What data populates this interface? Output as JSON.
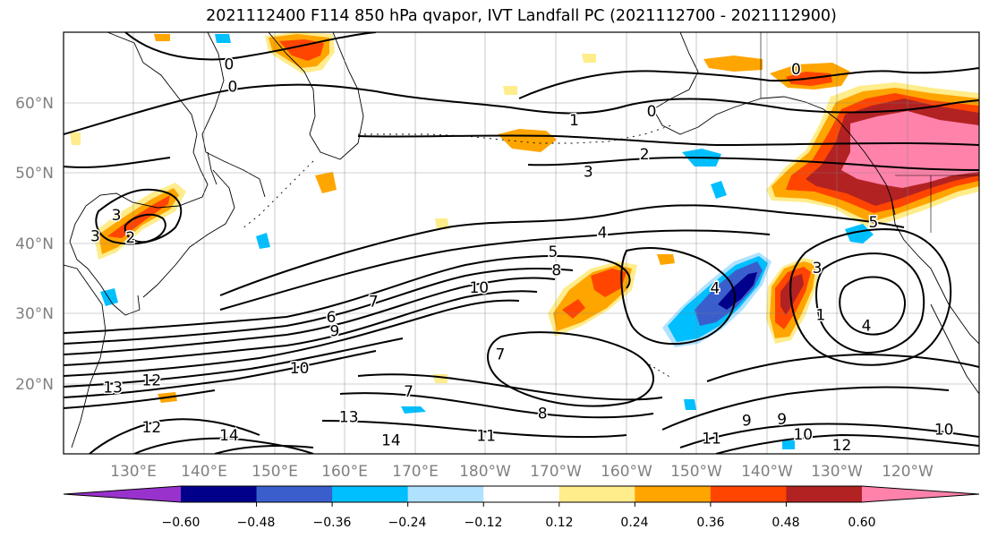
{
  "title": "2021112400 F114 850 hPa qvapor, IVT Landfall PC (2021112700 - 2021112900)",
  "map": {
    "lat_labels": [
      "60°N",
      "50°N",
      "40°N",
      "30°N",
      "20°N"
    ],
    "lon_labels": [
      "130°E",
      "140°E",
      "150°E",
      "160°E",
      "170°E",
      "180°W",
      "170°W",
      "160°W",
      "150°W",
      "140°W",
      "130°W",
      "120°W"
    ],
    "contour_labels": [
      {
        "text": "0",
        "lon": 143.5,
        "lat": 65.5
      },
      {
        "text": "0",
        "lon": 144.0,
        "lat": 62.3
      },
      {
        "text": "0",
        "lon": 224.0,
        "lat": 64.8
      },
      {
        "text": "0",
        "lon": 203.5,
        "lat": 58.8
      },
      {
        "text": "1",
        "lon": 192.5,
        "lat": 57.5
      },
      {
        "text": "2",
        "lon": 202.5,
        "lat": 52.7
      },
      {
        "text": "3",
        "lon": 194.5,
        "lat": 50.2
      },
      {
        "text": "3",
        "lon": 127.5,
        "lat": 44.0
      },
      {
        "text": "3",
        "lon": 124.5,
        "lat": 41.0
      },
      {
        "text": "2",
        "lon": 129.5,
        "lat": 40.8
      },
      {
        "text": "4",
        "lon": 196.5,
        "lat": 41.5
      },
      {
        "text": "5",
        "lon": 189.5,
        "lat": 38.8
      },
      {
        "text": "8",
        "lon": 190.0,
        "lat": 36.2
      },
      {
        "text": "10",
        "lon": 179.0,
        "lat": 33.7
      },
      {
        "text": "7",
        "lon": 164.0,
        "lat": 31.7
      },
      {
        "text": "6",
        "lon": 158.0,
        "lat": 29.5
      },
      {
        "text": "9",
        "lon": 158.5,
        "lat": 27.5
      },
      {
        "text": "4",
        "lon": 212.5,
        "lat": 33.6
      },
      {
        "text": "1",
        "lon": 227.5,
        "lat": 29.8
      },
      {
        "text": "4",
        "lon": 234.0,
        "lat": 28.3
      },
      {
        "text": "3",
        "lon": 227.0,
        "lat": 36.5
      },
      {
        "text": "5",
        "lon": 235.0,
        "lat": 43.0
      },
      {
        "text": "10",
        "lon": 153.5,
        "lat": 22.2
      },
      {
        "text": "12",
        "lon": 132.5,
        "lat": 20.5
      },
      {
        "text": "13",
        "lon": 127.0,
        "lat": 19.5
      },
      {
        "text": "7",
        "lon": 182.0,
        "lat": 24.2
      },
      {
        "text": "7",
        "lon": 169.0,
        "lat": 18.9
      },
      {
        "text": "8",
        "lon": 188.0,
        "lat": 15.8
      },
      {
        "text": "13",
        "lon": 160.5,
        "lat": 15.3
      },
      {
        "text": "12",
        "lon": 132.5,
        "lat": 13.8
      },
      {
        "text": "14",
        "lon": 143.5,
        "lat": 12.7
      },
      {
        "text": "14",
        "lon": 166.5,
        "lat": 12.0
      },
      {
        "text": "11",
        "lon": 180.0,
        "lat": 12.6
      },
      {
        "text": "9",
        "lon": 217.0,
        "lat": 14.8
      },
      {
        "text": "9",
        "lon": 222.0,
        "lat": 15.0
      },
      {
        "text": "10",
        "lon": 225.0,
        "lat": 12.8
      },
      {
        "text": "11",
        "lon": 212.0,
        "lat": 12.2
      },
      {
        "text": "12",
        "lon": 230.5,
        "lat": 11.3
      },
      {
        "text": "10",
        "lon": 245.0,
        "lat": 13.5
      }
    ]
  },
  "colorbar": {
    "tick_labels": [
      "−0.60",
      "−0.48",
      "−0.36",
      "−0.24",
      "−0.12",
      "0.12",
      "0.24",
      "0.36",
      "0.48",
      "0.60"
    ],
    "colors": [
      "#9932cc",
      "#00008b",
      "#3a5fcd",
      "#00bfff",
      "#b0e2ff",
      "#ffffff",
      "#ffec8b",
      "#ffa500",
      "#ff4500",
      "#b22222",
      "#ff82ab"
    ]
  }
}
